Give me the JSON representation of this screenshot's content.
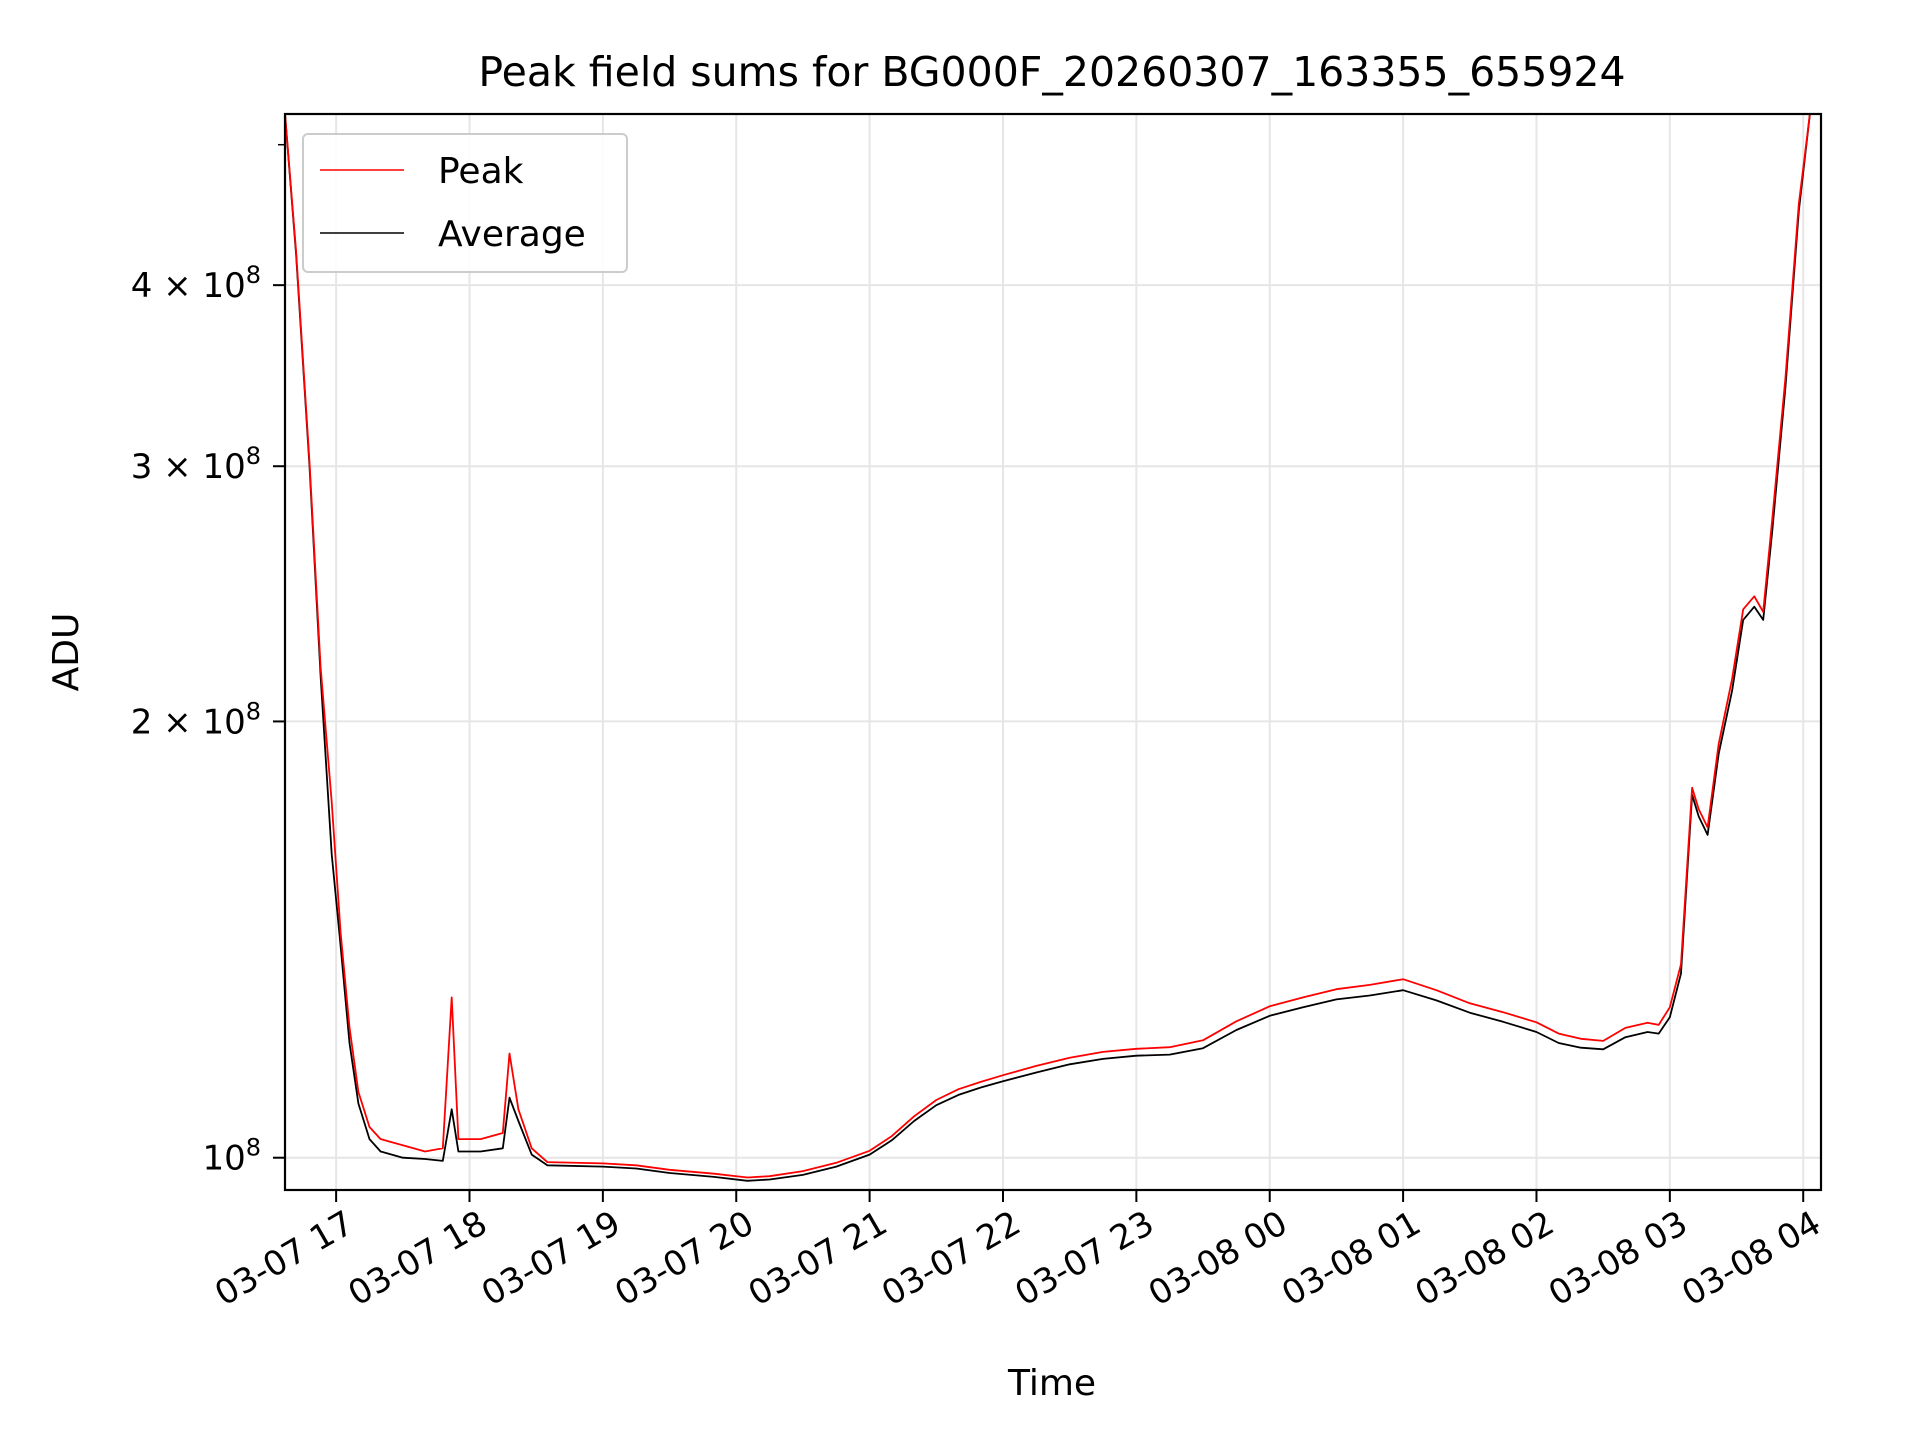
{
  "chart_data": {
    "type": "line",
    "title": "Peak field sums for BG000F_20260307_163355_655924",
    "xlabel": "Time",
    "ylabel": "ADU",
    "x_range": [
      "2026-03-07 16:37",
      "2026-03-08 04:08"
    ],
    "y_range": [
      95000000,
      525000000
    ],
    "y_scale": "log",
    "grid": true,
    "legend": {
      "position": "top-left",
      "entries": [
        "Peak",
        "Average"
      ]
    },
    "colors": {
      "Peak": "#ff0000",
      "Average": "#000000",
      "grid": "#e6e6e6"
    },
    "x_ticks": [
      {
        "label": "03-07 17",
        "value": "2026-03-07 17:00"
      },
      {
        "label": "03-07 18",
        "value": "2026-03-07 18:00"
      },
      {
        "label": "03-07 19",
        "value": "2026-03-07 19:00"
      },
      {
        "label": "03-07 20",
        "value": "2026-03-07 20:00"
      },
      {
        "label": "03-07 21",
        "value": "2026-03-07 21:00"
      },
      {
        "label": "03-07 22",
        "value": "2026-03-07 22:00"
      },
      {
        "label": "03-07 23",
        "value": "2026-03-07 23:00"
      },
      {
        "label": "03-08 00",
        "value": "2026-03-08 00:00"
      },
      {
        "label": "03-08 01",
        "value": "2026-03-08 01:00"
      },
      {
        "label": "03-08 02",
        "value": "2026-03-08 02:00"
      },
      {
        "label": "03-08 03",
        "value": "2026-03-08 03:00"
      },
      {
        "label": "03-08 04",
        "value": "2026-03-08 04:00"
      }
    ],
    "y_ticks": [
      {
        "mantissa": "",
        "exponent": "8",
        "base": "10",
        "value": 100000000
      },
      {
        "mantissa": "2",
        "exponent": "8",
        "base": "10",
        "value": 200000000
      },
      {
        "mantissa": "3",
        "exponent": "8",
        "base": "10",
        "value": 300000000
      },
      {
        "mantissa": "4",
        "exponent": "8",
        "base": "10",
        "value": 400000000
      }
    ],
    "y_times_sign": "×",
    "series": [
      {
        "name": "Average",
        "points": [
          [
            "2026-03-07 16:37",
            525000000
          ],
          [
            "2026-03-07 16:42",
            420000000
          ],
          [
            "2026-03-07 16:48",
            300000000
          ],
          [
            "2026-03-07 16:53",
            215000000
          ],
          [
            "2026-03-07 16:58",
            162000000
          ],
          [
            "2026-03-07 17:02",
            140000000
          ],
          [
            "2026-03-07 17:06",
            120000000
          ],
          [
            "2026-03-07 17:10",
            109000000
          ],
          [
            "2026-03-07 17:15",
            103000000
          ],
          [
            "2026-03-07 17:20",
            101000000
          ],
          [
            "2026-03-07 17:30",
            100000000
          ],
          [
            "2026-03-07 17:40",
            99800000
          ],
          [
            "2026-03-07 17:48",
            99500000
          ],
          [
            "2026-03-07 17:52",
            108000000
          ],
          [
            "2026-03-07 17:55",
            101000000
          ],
          [
            "2026-03-07 18:05",
            101000000
          ],
          [
            "2026-03-07 18:15",
            101500000
          ],
          [
            "2026-03-07 18:18",
            110000000
          ],
          [
            "2026-03-07 18:22",
            106000000
          ],
          [
            "2026-03-07 18:28",
            100500000
          ],
          [
            "2026-03-07 18:35",
            98800000
          ],
          [
            "2026-03-07 19:00",
            98600000
          ],
          [
            "2026-03-07 19:15",
            98300000
          ],
          [
            "2026-03-07 19:30",
            97600000
          ],
          [
            "2026-03-07 19:50",
            97000000
          ],
          [
            "2026-03-07 20:05",
            96400000
          ],
          [
            "2026-03-07 20:15",
            96600000
          ],
          [
            "2026-03-07 20:30",
            97300000
          ],
          [
            "2026-03-07 20:45",
            98600000
          ],
          [
            "2026-03-07 21:00",
            100500000
          ],
          [
            "2026-03-07 21:10",
            102800000
          ],
          [
            "2026-03-07 21:20",
            106000000
          ],
          [
            "2026-03-07 21:30",
            108700000
          ],
          [
            "2026-03-07 21:40",
            110500000
          ],
          [
            "2026-03-07 21:50",
            111800000
          ],
          [
            "2026-03-07 22:00",
            112900000
          ],
          [
            "2026-03-07 22:15",
            114500000
          ],
          [
            "2026-03-07 22:30",
            116000000
          ],
          [
            "2026-03-07 22:45",
            117000000
          ],
          [
            "2026-03-07 23:00",
            117600000
          ],
          [
            "2026-03-07 23:15",
            117800000
          ],
          [
            "2026-03-07 23:30",
            119000000
          ],
          [
            "2026-03-07 23:45",
            122500000
          ],
          [
            "2026-03-08 00:00",
            125300000
          ],
          [
            "2026-03-08 00:15",
            127000000
          ],
          [
            "2026-03-08 00:30",
            128600000
          ],
          [
            "2026-03-08 00:45",
            129400000
          ],
          [
            "2026-03-08 01:00",
            130500000
          ],
          [
            "2026-03-08 01:15",
            128400000
          ],
          [
            "2026-03-08 01:30",
            125900000
          ],
          [
            "2026-03-08 01:45",
            124100000
          ],
          [
            "2026-03-08 02:00",
            122100000
          ],
          [
            "2026-03-08 02:10",
            120000000
          ],
          [
            "2026-03-08 02:20",
            119100000
          ],
          [
            "2026-03-08 02:30",
            118800000
          ],
          [
            "2026-03-08 02:40",
            121100000
          ],
          [
            "2026-03-08 02:50",
            122100000
          ],
          [
            "2026-03-08 02:55",
            121800000
          ],
          [
            "2026-03-08 03:00",
            125000000
          ],
          [
            "2026-03-08 03:05",
            134000000
          ],
          [
            "2026-03-08 03:10",
            178000000
          ],
          [
            "2026-03-08 03:13",
            172000000
          ],
          [
            "2026-03-08 03:17",
            167000000
          ],
          [
            "2026-03-08 03:22",
            190000000
          ],
          [
            "2026-03-08 03:28",
            210000000
          ],
          [
            "2026-03-08 03:33",
            235000000
          ],
          [
            "2026-03-08 03:38",
            240000000
          ],
          [
            "2026-03-08 03:42",
            235000000
          ],
          [
            "2026-03-08 03:46",
            270000000
          ],
          [
            "2026-03-08 03:52",
            340000000
          ],
          [
            "2026-03-08 03:58",
            450000000
          ],
          [
            "2026-03-08 04:03",
            525000000
          ]
        ]
      },
      {
        "name": "Peak",
        "points": [
          [
            "2026-03-07 16:37",
            525000000
          ],
          [
            "2026-03-07 16:42",
            422000000
          ],
          [
            "2026-03-07 16:48",
            302000000
          ],
          [
            "2026-03-07 16:53",
            218000000
          ],
          [
            "2026-03-07 16:58",
            176000000
          ],
          [
            "2026-03-07 17:02",
            143000000
          ],
          [
            "2026-03-07 17:06",
            123000000
          ],
          [
            "2026-03-07 17:10",
            111000000
          ],
          [
            "2026-03-07 17:15",
            105000000
          ],
          [
            "2026-03-07 17:20",
            103000000
          ],
          [
            "2026-03-07 17:30",
            102000000
          ],
          [
            "2026-03-07 17:40",
            101000000
          ],
          [
            "2026-03-07 17:48",
            101500000
          ],
          [
            "2026-03-07 17:52",
            129000000
          ],
          [
            "2026-03-07 17:55",
            103000000
          ],
          [
            "2026-03-07 18:05",
            103000000
          ],
          [
            "2026-03-07 18:15",
            104000000
          ],
          [
            "2026-03-07 18:18",
            118000000
          ],
          [
            "2026-03-07 18:22",
            108000000
          ],
          [
            "2026-03-07 18:28",
            101500000
          ],
          [
            "2026-03-07 18:35",
            99300000
          ],
          [
            "2026-03-07 19:00",
            99100000
          ],
          [
            "2026-03-07 19:15",
            98800000
          ],
          [
            "2026-03-07 19:30",
            98100000
          ],
          [
            "2026-03-07 19:50",
            97500000
          ],
          [
            "2026-03-07 20:05",
            96900000
          ],
          [
            "2026-03-07 20:15",
            97100000
          ],
          [
            "2026-03-07 20:30",
            97900000
          ],
          [
            "2026-03-07 20:45",
            99200000
          ],
          [
            "2026-03-07 21:00",
            101100000
          ],
          [
            "2026-03-07 21:10",
            103500000
          ],
          [
            "2026-03-07 21:20",
            106800000
          ],
          [
            "2026-03-07 21:30",
            109600000
          ],
          [
            "2026-03-07 21:40",
            111500000
          ],
          [
            "2026-03-07 21:50",
            112800000
          ],
          [
            "2026-03-07 22:00",
            114000000
          ],
          [
            "2026-03-07 22:15",
            115700000
          ],
          [
            "2026-03-07 22:30",
            117200000
          ],
          [
            "2026-03-07 22:45",
            118300000
          ],
          [
            "2026-03-07 23:00",
            118900000
          ],
          [
            "2026-03-07 23:15",
            119200000
          ],
          [
            "2026-03-07 23:30",
            120500000
          ],
          [
            "2026-03-07 23:45",
            124200000
          ],
          [
            "2026-03-08 00:00",
            127200000
          ],
          [
            "2026-03-08 00:15",
            129000000
          ],
          [
            "2026-03-08 00:30",
            130700000
          ],
          [
            "2026-03-08 00:45",
            131600000
          ],
          [
            "2026-03-08 01:00",
            132800000
          ],
          [
            "2026-03-08 01:15",
            130500000
          ],
          [
            "2026-03-08 01:30",
            127800000
          ],
          [
            "2026-03-08 01:45",
            126000000
          ],
          [
            "2026-03-08 02:00",
            124000000
          ],
          [
            "2026-03-08 02:10",
            121800000
          ],
          [
            "2026-03-08 02:20",
            120800000
          ],
          [
            "2026-03-08 02:30",
            120400000
          ],
          [
            "2026-03-08 02:40",
            122900000
          ],
          [
            "2026-03-08 02:50",
            123900000
          ],
          [
            "2026-03-08 02:55",
            123500000
          ],
          [
            "2026-03-08 03:00",
            127000000
          ],
          [
            "2026-03-08 03:05",
            136000000
          ],
          [
            "2026-03-08 03:10",
            180000000
          ],
          [
            "2026-03-08 03:13",
            174000000
          ],
          [
            "2026-03-08 03:17",
            169000000
          ],
          [
            "2026-03-08 03:22",
            193000000
          ],
          [
            "2026-03-08 03:28",
            214000000
          ],
          [
            "2026-03-08 03:33",
            239000000
          ],
          [
            "2026-03-08 03:38",
            244000000
          ],
          [
            "2026-03-08 03:42",
            238000000
          ],
          [
            "2026-03-08 03:46",
            275000000
          ],
          [
            "2026-03-08 03:52",
            345000000
          ],
          [
            "2026-03-08 03:58",
            455000000
          ],
          [
            "2026-03-08 04:03",
            525000000
          ]
        ]
      }
    ]
  }
}
